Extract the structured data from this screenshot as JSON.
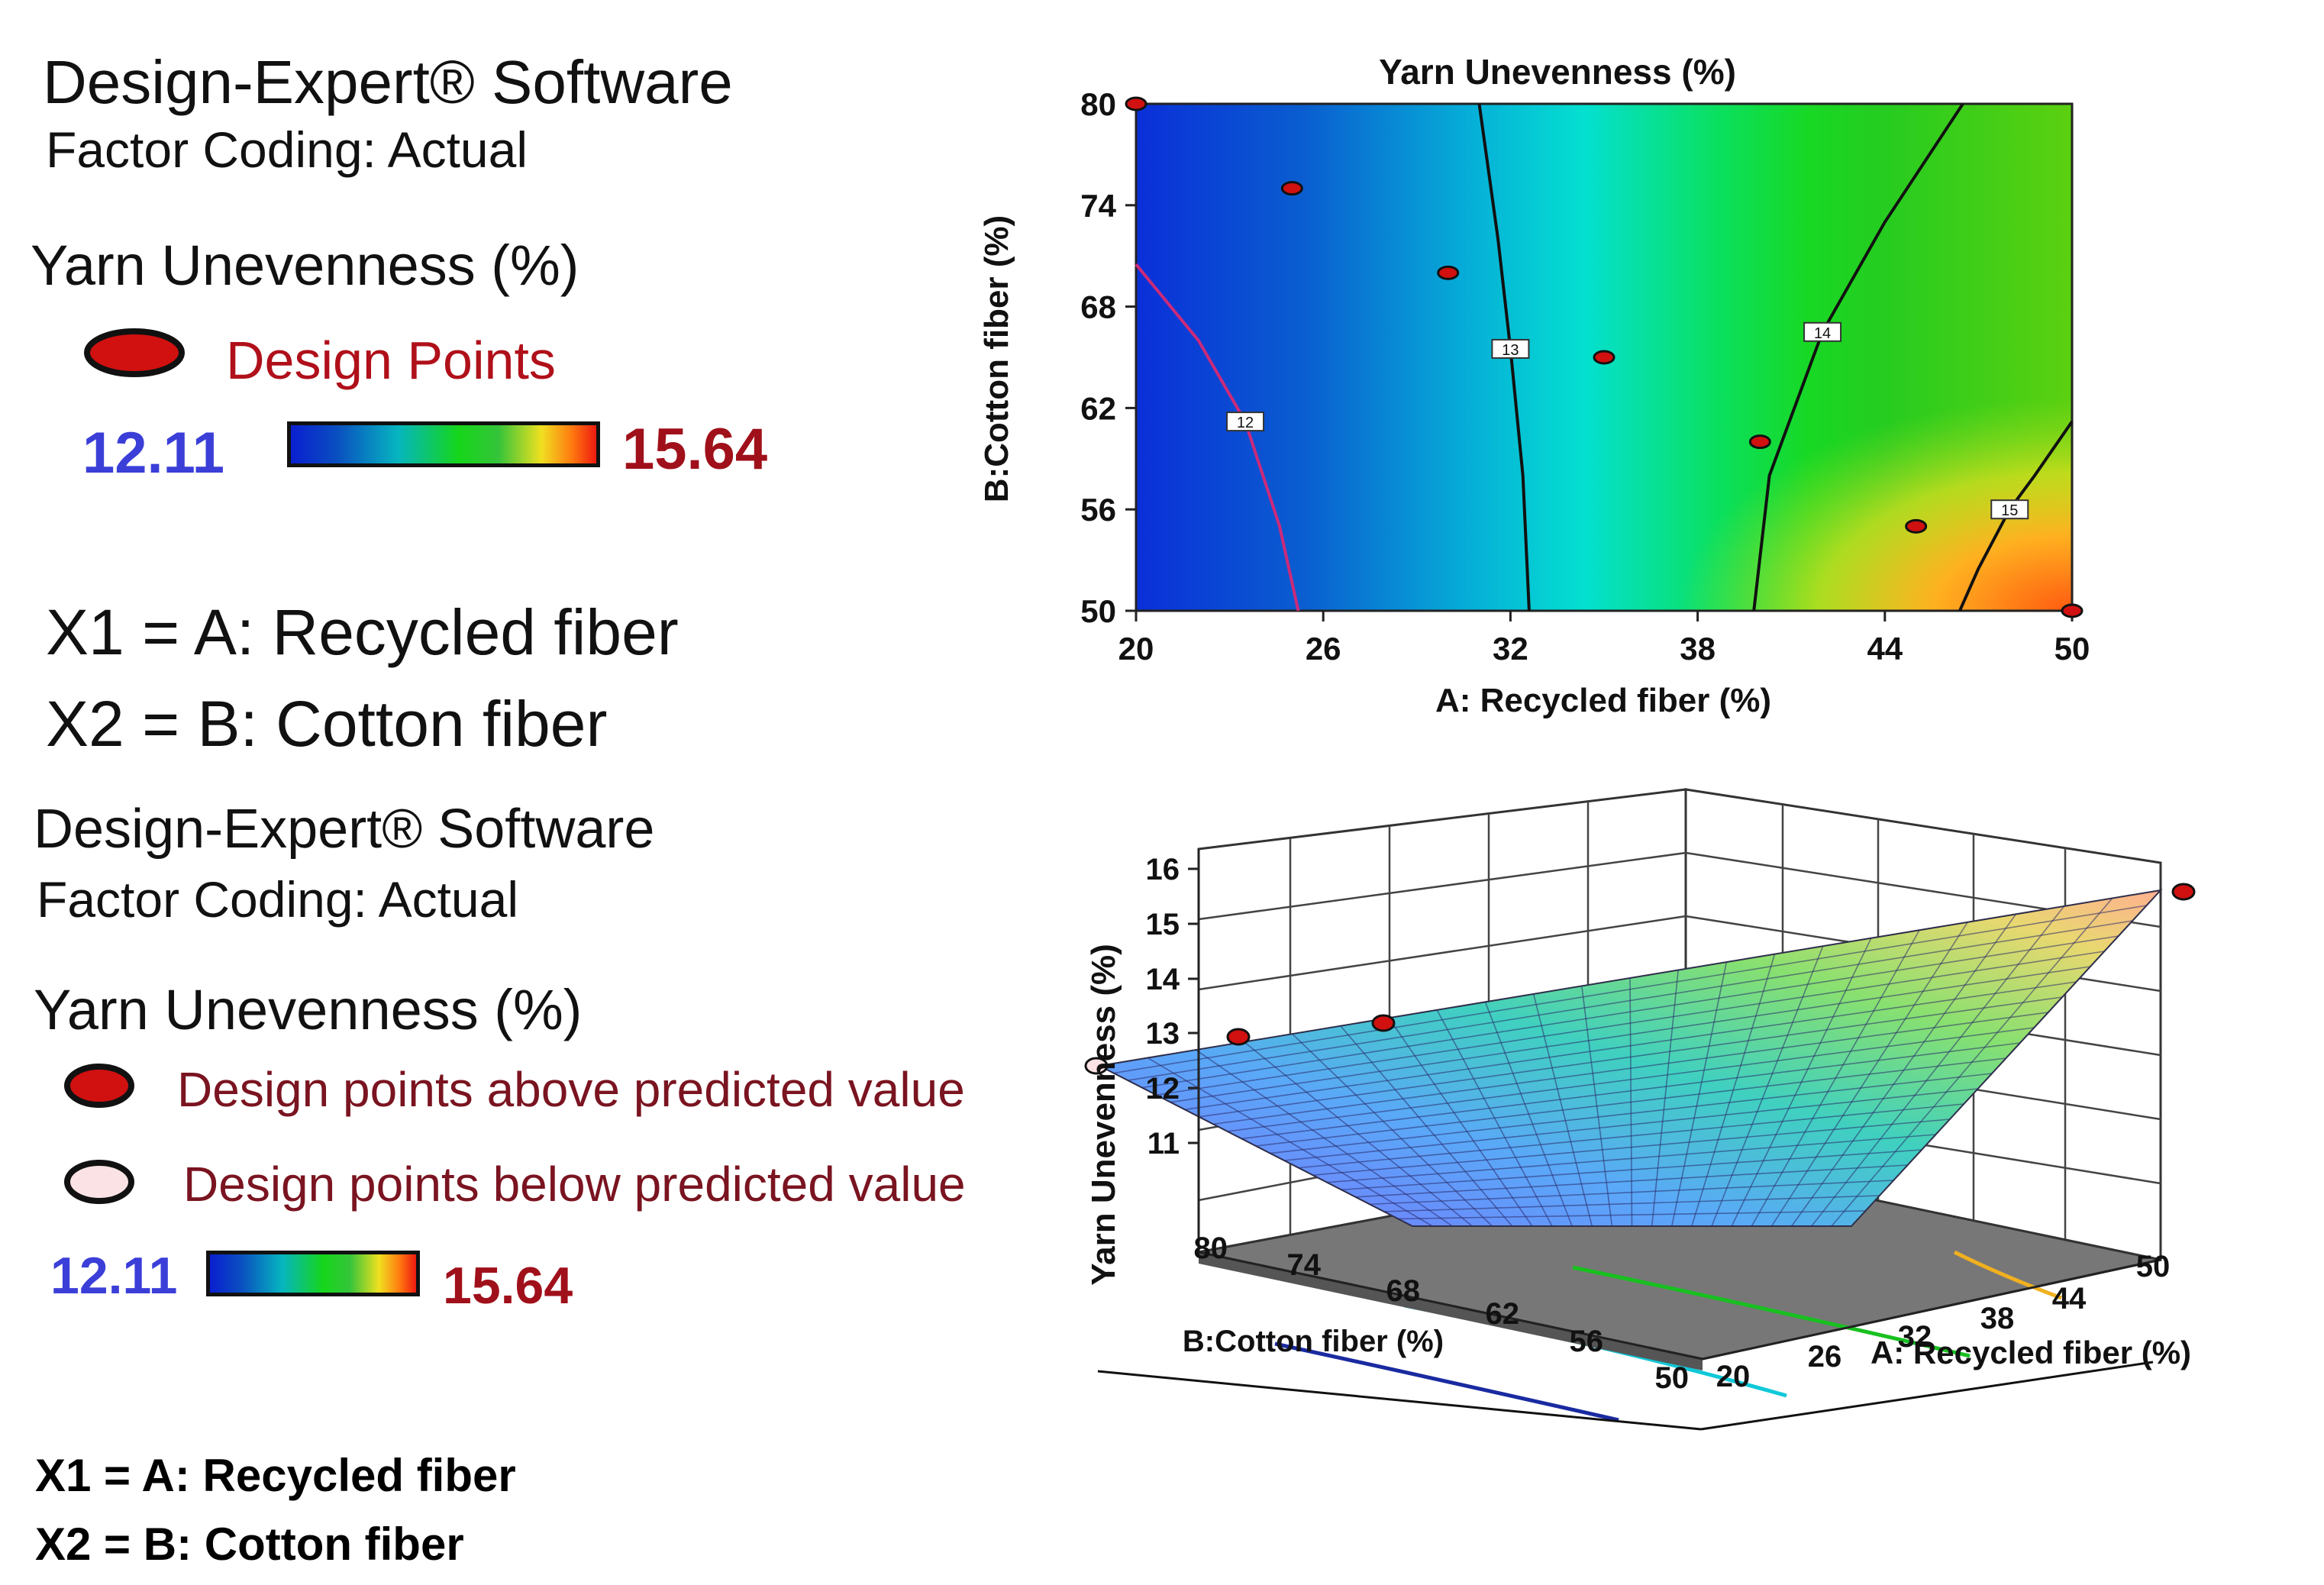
{
  "legend_top": {
    "software": "Design-Expert® Software",
    "factor_coding": "Factor Coding: Actual",
    "response": "Yarn Unevenness (%)",
    "points_label": "Design Points",
    "min": "12.11",
    "max": "15.64",
    "x1": "X1 = A: Recycled fiber",
    "x2": "X2 = B: Cotton fiber"
  },
  "legend_bottom": {
    "software": "Design-Expert® Software",
    "factor_coding": "Factor Coding: Actual",
    "response": "Yarn Unevenness (%)",
    "above_label": "Design points above predicted value",
    "below_label": "Design points below predicted value",
    "min": "12.11",
    "max": "15.64",
    "x1": "X1 = A: Recycled fiber",
    "x2": "X2 = B: Cotton fiber"
  },
  "colors": {
    "low": "#0a1fd0",
    "mid": "#16d61a",
    "high": "#ee1a10",
    "design_point": "#d11010",
    "contour_low": "#cc2a7a"
  },
  "chart_data": [
    {
      "type": "contour",
      "title": "Yarn Unevenness (%)",
      "xlabel": "A: Recycled fiber (%)",
      "ylabel": "B:Cotton fiber (%)",
      "xlim": [
        20,
        50
      ],
      "ylim": [
        50,
        80
      ],
      "x_ticks": [
        "20",
        "26",
        "32",
        "38",
        "44",
        "50"
      ],
      "y_ticks": [
        "50",
        "56",
        "62",
        "68",
        "74",
        "80"
      ],
      "contours": [
        {
          "level": "12",
          "label_at": [
            23.5,
            61.2
          ]
        },
        {
          "level": "13",
          "label_at": [
            32.0,
            65.5
          ]
        },
        {
          "level": "14",
          "label_at": [
            42.0,
            66.5
          ]
        },
        {
          "level": "15",
          "label_at": [
            48.0,
            56.0
          ]
        }
      ],
      "design_points": [
        {
          "x": 20,
          "y": 80
        },
        {
          "x": 25,
          "y": 75
        },
        {
          "x": 30,
          "y": 70
        },
        {
          "x": 35,
          "y": 65
        },
        {
          "x": 40,
          "y": 60
        },
        {
          "x": 45,
          "y": 55
        },
        {
          "x": 50,
          "y": 50
        }
      ]
    },
    {
      "type": "surface",
      "zlabel": "Yarn Unevenness (%)",
      "xlabel": "A: Recycled fiber (%)",
      "ylabel": "B:Cotton fiber (%)",
      "z_ticks": [
        "11",
        "12",
        "13",
        "14",
        "15",
        "16"
      ],
      "x_ticks": [
        "20",
        "26",
        "32",
        "38",
        "44",
        "50"
      ],
      "y_ticks": [
        "50",
        "56",
        "62",
        "68",
        "74",
        "80"
      ],
      "zlim": [
        11,
        16
      ],
      "design_points": [
        {
          "x": 20,
          "y": 80,
          "z": 12.11,
          "position": "below"
        },
        {
          "x": 25,
          "y": 75,
          "z": 12.6,
          "position": "above"
        },
        {
          "x": 30,
          "y": 70,
          "z": 12.9,
          "position": "above"
        },
        {
          "x": 50,
          "y": 50,
          "z": 15.64,
          "position": "above"
        }
      ]
    }
  ]
}
